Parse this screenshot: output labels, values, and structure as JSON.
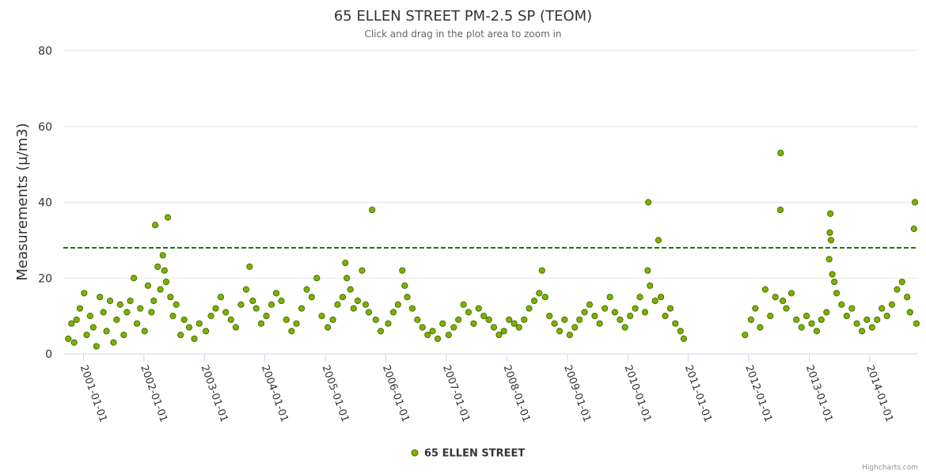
{
  "chart_data": {
    "type": "scatter",
    "title": "65 ELLEN STREET PM-2.5 SP (TEOM)",
    "subtitle": "Click and drag in the plot area to zoom in",
    "xlabel": "",
    "ylabel": "Measurements (µ/m3)",
    "ylim": [
      0,
      80
    ],
    "yticks": [
      "0",
      "20",
      "40",
      "60",
      "80"
    ],
    "xlim": [
      "2000-09-01",
      "2014-10-20"
    ],
    "xtick_dates": [
      "2001-01-01",
      "2002-01-01",
      "2003-01-01",
      "2004-01-01",
      "2005-01-01",
      "2006-01-01",
      "2007-01-01",
      "2008-01-01",
      "2009-01-01",
      "2010-01-01",
      "2011-01-01",
      "2012-01-01",
      "2013-01-01",
      "2014-01-01"
    ],
    "xticks": [
      "2001-01-01",
      "2002-01-01",
      "2003-01-01",
      "2004-01-01",
      "2005-01-01",
      "2006-01-01",
      "2007-01-01",
      "2008-01-01",
      "2009-01-01",
      "2010-01-01",
      "2011-01-01",
      "2012-01-01",
      "2013-01-01",
      "2014-01-01"
    ],
    "threshold": 28,
    "grid": true,
    "legend_position": "bottom-center",
    "series": [
      {
        "name": "65 ELLEN STREET",
        "color": "#7cb200",
        "points": [
          [
            "2000-10-01",
            4
          ],
          [
            "2000-10-20",
            8
          ],
          [
            "2000-11-05",
            3
          ],
          [
            "2000-11-20",
            9
          ],
          [
            "2000-12-10",
            12
          ],
          [
            "2001-01-05",
            16
          ],
          [
            "2001-01-20",
            5
          ],
          [
            "2001-02-10",
            10
          ],
          [
            "2001-03-01",
            7
          ],
          [
            "2001-03-20",
            2
          ],
          [
            "2001-04-10",
            15
          ],
          [
            "2001-05-01",
            11
          ],
          [
            "2001-05-20",
            6
          ],
          [
            "2001-06-10",
            14
          ],
          [
            "2001-07-01",
            3
          ],
          [
            "2001-07-20",
            9
          ],
          [
            "2001-08-10",
            13
          ],
          [
            "2001-09-01",
            5
          ],
          [
            "2001-09-20",
            11
          ],
          [
            "2001-10-10",
            14
          ],
          [
            "2001-11-01",
            20
          ],
          [
            "2001-11-20",
            8
          ],
          [
            "2001-12-10",
            12
          ],
          [
            "2002-01-05",
            6
          ],
          [
            "2002-01-25",
            18
          ],
          [
            "2002-02-15",
            11
          ],
          [
            "2002-03-01",
            14
          ],
          [
            "2002-03-10",
            34
          ],
          [
            "2002-03-25",
            23
          ],
          [
            "2002-04-10",
            17
          ],
          [
            "2002-04-25",
            26
          ],
          [
            "2002-05-05",
            22
          ],
          [
            "2002-05-15",
            19
          ],
          [
            "2002-05-25",
            36
          ],
          [
            "2002-06-10",
            15
          ],
          [
            "2002-06-25",
            10
          ],
          [
            "2002-07-15",
            13
          ],
          [
            "2002-08-10",
            5
          ],
          [
            "2002-09-01",
            9
          ],
          [
            "2002-10-01",
            7
          ],
          [
            "2002-11-01",
            4
          ],
          [
            "2002-12-01",
            8
          ],
          [
            "2003-01-10",
            6
          ],
          [
            "2003-02-10",
            10
          ],
          [
            "2003-03-10",
            12
          ],
          [
            "2003-04-10",
            15
          ],
          [
            "2003-05-10",
            11
          ],
          [
            "2003-06-10",
            9
          ],
          [
            "2003-07-10",
            7
          ],
          [
            "2003-08-10",
            13
          ],
          [
            "2003-09-10",
            17
          ],
          [
            "2003-10-01",
            23
          ],
          [
            "2003-10-20",
            14
          ],
          [
            "2003-11-10",
            12
          ],
          [
            "2003-12-10",
            8
          ],
          [
            "2004-01-10",
            10
          ],
          [
            "2004-02-10",
            13
          ],
          [
            "2004-03-10",
            16
          ],
          [
            "2004-04-10",
            14
          ],
          [
            "2004-05-10",
            9
          ],
          [
            "2004-06-10",
            6
          ],
          [
            "2004-07-10",
            8
          ],
          [
            "2004-08-10",
            12
          ],
          [
            "2004-09-10",
            17
          ],
          [
            "2004-10-10",
            15
          ],
          [
            "2004-11-10",
            20
          ],
          [
            "2004-12-10",
            10
          ],
          [
            "2005-01-15",
            7
          ],
          [
            "2005-02-15",
            9
          ],
          [
            "2005-03-15",
            13
          ],
          [
            "2005-04-15",
            15
          ],
          [
            "2005-05-01",
            24
          ],
          [
            "2005-05-10",
            20
          ],
          [
            "2005-06-01",
            17
          ],
          [
            "2005-06-20",
            12
          ],
          [
            "2005-07-15",
            14
          ],
          [
            "2005-08-10",
            22
          ],
          [
            "2005-09-01",
            13
          ],
          [
            "2005-09-20",
            11
          ],
          [
            "2005-10-10",
            38
          ],
          [
            "2005-11-01",
            9
          ],
          [
            "2005-12-01",
            6
          ],
          [
            "2006-01-15",
            8
          ],
          [
            "2006-02-15",
            11
          ],
          [
            "2006-03-15",
            13
          ],
          [
            "2006-04-10",
            22
          ],
          [
            "2006-04-25",
            18
          ],
          [
            "2006-05-10",
            15
          ],
          [
            "2006-06-10",
            12
          ],
          [
            "2006-07-10",
            9
          ],
          [
            "2006-08-10",
            7
          ],
          [
            "2006-09-10",
            5
          ],
          [
            "2006-10-10",
            6
          ],
          [
            "2006-11-10",
            4
          ],
          [
            "2006-12-10",
            8
          ],
          [
            "2007-01-15",
            5
          ],
          [
            "2007-02-15",
            7
          ],
          [
            "2007-03-15",
            9
          ],
          [
            "2007-04-15",
            13
          ],
          [
            "2007-05-15",
            11
          ],
          [
            "2007-06-15",
            8
          ],
          [
            "2007-07-15",
            12
          ],
          [
            "2007-08-15",
            10
          ],
          [
            "2007-09-15",
            9
          ],
          [
            "2007-10-15",
            7
          ],
          [
            "2007-11-15",
            5
          ],
          [
            "2007-12-15",
            6
          ],
          [
            "2008-01-15",
            9
          ],
          [
            "2008-02-15",
            8
          ],
          [
            "2008-03-15",
            7
          ],
          [
            "2008-04-15",
            9
          ],
          [
            "2008-05-15",
            12
          ],
          [
            "2008-06-15",
            14
          ],
          [
            "2008-07-15",
            16
          ],
          [
            "2008-08-01",
            22
          ],
          [
            "2008-08-20",
            15
          ],
          [
            "2008-09-15",
            10
          ],
          [
            "2008-10-15",
            8
          ],
          [
            "2008-11-15",
            6
          ],
          [
            "2008-12-15",
            9
          ],
          [
            "2009-01-15",
            5
          ],
          [
            "2009-02-15",
            7
          ],
          [
            "2009-03-15",
            9
          ],
          [
            "2009-04-15",
            11
          ],
          [
            "2009-05-15",
            13
          ],
          [
            "2009-06-15",
            10
          ],
          [
            "2009-07-15",
            8
          ],
          [
            "2009-08-15",
            12
          ],
          [
            "2009-09-15",
            15
          ],
          [
            "2009-10-15",
            11
          ],
          [
            "2009-11-15",
            9
          ],
          [
            "2009-12-15",
            7
          ],
          [
            "2010-01-15",
            10
          ],
          [
            "2010-02-15",
            12
          ],
          [
            "2010-03-15",
            15
          ],
          [
            "2010-04-15",
            11
          ],
          [
            "2010-05-01",
            22
          ],
          [
            "2010-05-05",
            40
          ],
          [
            "2010-05-15",
            18
          ],
          [
            "2010-06-15",
            14
          ],
          [
            "2010-07-05",
            30
          ],
          [
            "2010-07-20",
            15
          ],
          [
            "2010-08-15",
            10
          ],
          [
            "2010-09-15",
            12
          ],
          [
            "2010-10-15",
            8
          ],
          [
            "2010-11-15",
            6
          ],
          [
            "2010-12-05",
            4
          ],
          [
            "2011-12-10",
            5
          ],
          [
            "2012-01-15",
            9
          ],
          [
            "2012-02-10",
            12
          ],
          [
            "2012-03-10",
            7
          ],
          [
            "2012-04-10",
            17
          ],
          [
            "2012-05-10",
            10
          ],
          [
            "2012-06-10",
            15
          ],
          [
            "2012-07-10",
            38
          ],
          [
            "2012-07-12",
            53
          ],
          [
            "2012-07-25",
            14
          ],
          [
            "2012-08-15",
            12
          ],
          [
            "2012-09-15",
            16
          ],
          [
            "2012-10-15",
            9
          ],
          [
            "2012-11-15",
            7
          ],
          [
            "2012-12-15",
            10
          ],
          [
            "2013-01-15",
            8
          ],
          [
            "2013-02-15",
            6
          ],
          [
            "2013-03-15",
            9
          ],
          [
            "2013-04-15",
            11
          ],
          [
            "2013-05-01",
            25
          ],
          [
            "2013-05-05",
            32
          ],
          [
            "2013-05-08",
            37
          ],
          [
            "2013-05-12",
            30
          ],
          [
            "2013-05-20",
            21
          ],
          [
            "2013-06-01",
            19
          ],
          [
            "2013-06-15",
            16
          ],
          [
            "2013-07-15",
            13
          ],
          [
            "2013-08-15",
            10
          ],
          [
            "2013-09-15",
            12
          ],
          [
            "2013-10-15",
            8
          ],
          [
            "2013-11-15",
            6
          ],
          [
            "2013-12-15",
            9
          ],
          [
            "2014-01-15",
            7
          ],
          [
            "2014-02-15",
            9
          ],
          [
            "2014-03-15",
            12
          ],
          [
            "2014-04-15",
            10
          ],
          [
            "2014-05-15",
            13
          ],
          [
            "2014-06-15",
            17
          ],
          [
            "2014-07-15",
            19
          ],
          [
            "2014-08-15",
            15
          ],
          [
            "2014-09-01",
            11
          ],
          [
            "2014-09-25",
            33
          ],
          [
            "2014-10-01",
            40
          ],
          [
            "2014-10-10",
            8
          ]
        ]
      }
    ]
  },
  "credits": "Highcharts.com"
}
